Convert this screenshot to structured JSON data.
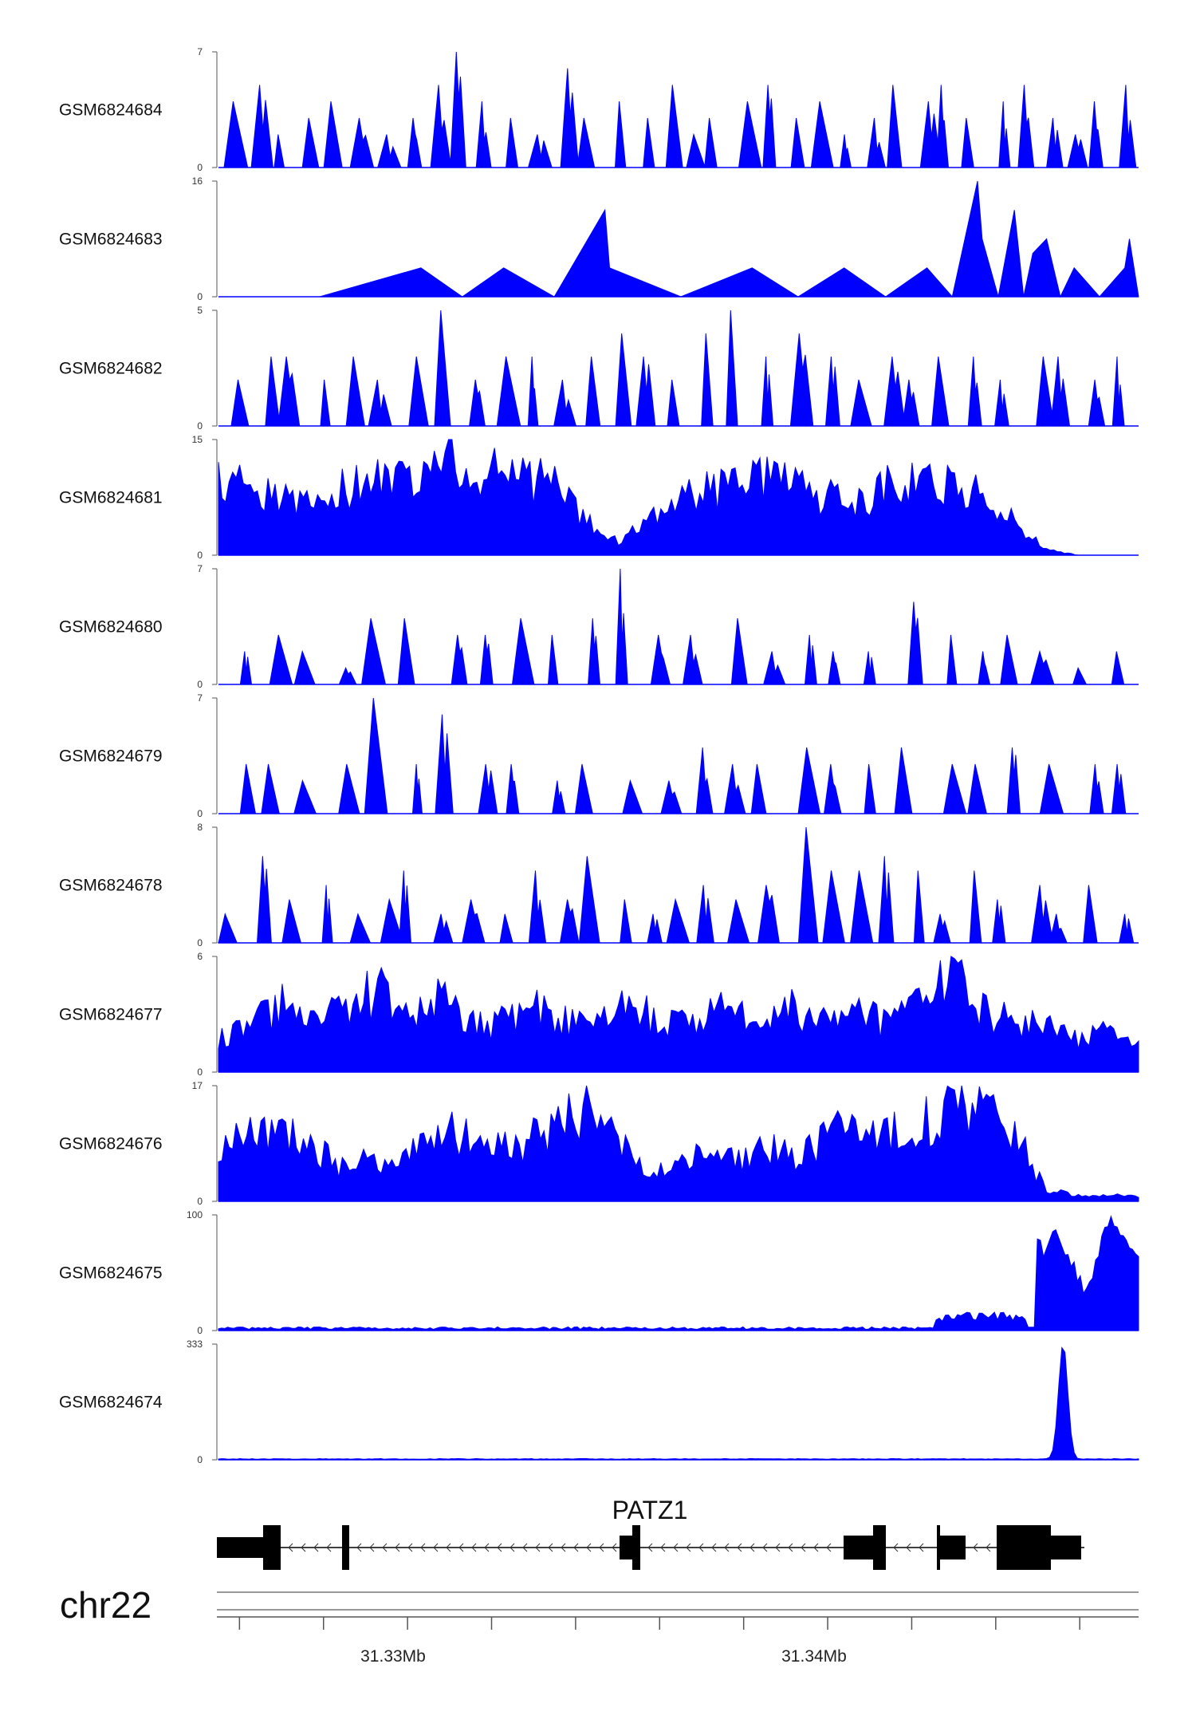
{
  "colors": {
    "signal": "#0000ff",
    "gene": "#000000",
    "axis": "#555555"
  },
  "chromosome": "chr22",
  "gene": {
    "name": "PATZ1"
  },
  "genome_axis": {
    "range_mb": [
      31.3255,
      31.3474
    ],
    "major_tick_labels": [
      "31.33Mb",
      "31.34Mb"
    ],
    "major_tick_values": [
      31.33,
      31.34
    ],
    "minor_tick_values": [
      31.326,
      31.328,
      31.33,
      31.332,
      31.334,
      31.336,
      31.338,
      31.34,
      31.342,
      31.344,
      31.346
    ]
  },
  "chart_data": {
    "type": "area",
    "x_range_mb": [
      31.3255,
      31.3474
    ],
    "series": [
      {
        "name": "GSM6824684",
        "ymax": 7,
        "ymin_label": "0",
        "ymax_label": "7",
        "pattern": "sparse_peaks",
        "peak_values": [
          4,
          5,
          2,
          3,
          4,
          3,
          2,
          3,
          5,
          7,
          4,
          3,
          2,
          6,
          3,
          4,
          3,
          5,
          2,
          3,
          4,
          5,
          3,
          4,
          2,
          3,
          5,
          4,
          5,
          3,
          4,
          5,
          3,
          2,
          4,
          5
        ]
      },
      {
        "name": "GSM6824683",
        "ymax": 16,
        "ymin_label": "0",
        "ymax_label": "16",
        "pattern": "triangle_peaks",
        "peak_values": [
          4,
          4,
          12,
          4,
          4,
          4,
          4,
          16,
          8,
          12,
          6,
          8,
          4,
          4,
          8
        ]
      },
      {
        "name": "GSM6824682",
        "ymax": 5,
        "ymin_label": "0",
        "ymax_label": "5",
        "pattern": "sparse_peaks",
        "peak_values": [
          2,
          3,
          3,
          2,
          3,
          2,
          3,
          5,
          2,
          3,
          3,
          2,
          3,
          4,
          3,
          2,
          4,
          5,
          3,
          4,
          3,
          2,
          3,
          2,
          3,
          3,
          2,
          3,
          3,
          2,
          3
        ]
      },
      {
        "name": "GSM6824681",
        "ymax": 15,
        "ymin_label": "0",
        "ymax_label": "15",
        "pattern": "dense",
        "peak_values": [
          12,
          10,
          9,
          8,
          10,
          13,
          12,
          15,
          14,
          13,
          12,
          11,
          5,
          2,
          5,
          9,
          10,
          11,
          12,
          10,
          9,
          8,
          11,
          12,
          11,
          9,
          5,
          1,
          0,
          0,
          0
        ]
      },
      {
        "name": "GSM6824680",
        "ymax": 7,
        "ymin_label": "0",
        "ymax_label": "7",
        "pattern": "sparse_peaks",
        "peak_values": [
          2,
          3,
          2,
          1,
          4,
          4,
          3,
          3,
          4,
          3,
          4,
          7,
          3,
          3,
          4,
          2,
          3,
          2,
          2,
          5,
          3,
          2,
          3,
          2,
          1,
          2
        ]
      },
      {
        "name": "GSM6824679",
        "ymax": 7,
        "ymin_label": "0",
        "ymax_label": "7",
        "pattern": "sparse_peaks",
        "peak_values": [
          3,
          3,
          2,
          3,
          7,
          3,
          6,
          3,
          3,
          2,
          3,
          2,
          2,
          4,
          3,
          3,
          4,
          3,
          3,
          4,
          3,
          3,
          4,
          3,
          3,
          3
        ]
      },
      {
        "name": "GSM6824678",
        "ymax": 8,
        "ymin_label": "0",
        "ymax_label": "8",
        "pattern": "sparse_peaks",
        "peak_values": [
          2,
          6,
          3,
          4,
          2,
          3,
          5,
          2,
          3,
          2,
          5,
          3,
          6,
          3,
          2,
          3,
          4,
          3,
          4,
          8,
          5,
          5,
          6,
          5,
          2,
          5,
          3,
          4,
          2,
          4,
          2
        ]
      },
      {
        "name": "GSM6824677",
        "ymax": 6,
        "ymin_label": "0",
        "ymax_label": "6",
        "pattern": "dense",
        "peak_values": [
          2,
          3,
          4,
          3,
          4,
          5,
          3,
          5,
          3,
          3,
          4,
          3,
          3,
          4,
          3,
          3,
          4,
          3,
          4,
          3,
          4,
          3,
          4,
          6,
          4,
          3,
          3,
          2,
          3,
          2
        ]
      },
      {
        "name": "GSM6824676",
        "ymax": 17,
        "ymin_label": "0",
        "ymax_label": "17",
        "pattern": "dense",
        "peak_values": [
          9,
          12,
          12,
          10,
          6,
          7,
          8,
          11,
          12,
          10,
          10,
          13,
          17,
          10,
          5,
          7,
          8,
          7,
          9,
          8,
          12,
          13,
          12,
          14,
          16,
          17,
          11,
          2,
          1,
          1,
          1
        ]
      },
      {
        "name": "GSM6824675",
        "ymax": 100,
        "ymin_label": "0",
        "ymax_label": "100",
        "pattern": "tail_peaks",
        "peak_values": [
          2,
          2,
          2,
          2,
          2,
          2,
          2,
          2,
          2,
          2,
          3,
          2,
          3,
          16,
          14,
          12,
          93,
          68,
          80,
          100,
          90
        ]
      },
      {
        "name": "GSM6824674",
        "ymax": 333,
        "ymin_label": "0",
        "ymax_label": "333",
        "pattern": "single_peak",
        "peak_values": [
          2,
          2,
          2,
          2,
          3,
          2,
          333,
          4
        ]
      }
    ]
  }
}
